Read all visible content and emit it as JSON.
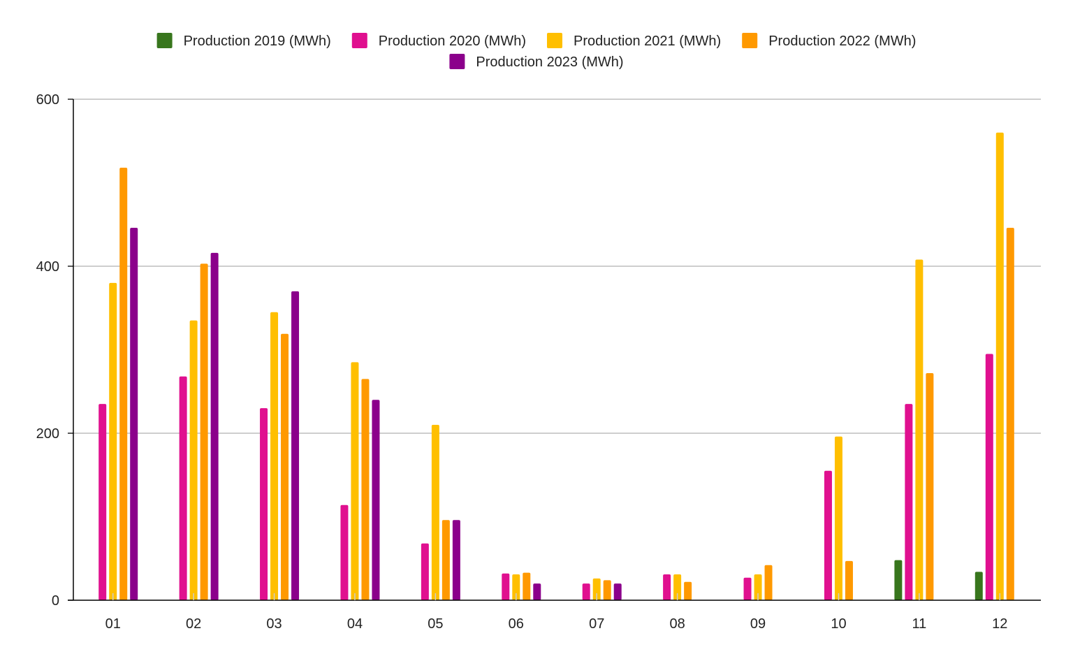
{
  "chart_data": {
    "type": "bar",
    "title": "",
    "xlabel": "",
    "ylabel": "",
    "ylim": [
      0,
      600
    ],
    "yticks": [
      0,
      200,
      400,
      600
    ],
    "grid": true,
    "legend_position": "top-center",
    "categories": [
      "01",
      "02",
      "03",
      "04",
      "05",
      "06",
      "07",
      "08",
      "09",
      "10",
      "11",
      "12"
    ],
    "series": [
      {
        "name": "Production 2019 (MWh)",
        "color": "#38761d",
        "values": [
          null,
          null,
          null,
          null,
          null,
          null,
          null,
          null,
          null,
          null,
          48,
          34
        ]
      },
      {
        "name": "Production 2020 (MWh)",
        "color": "#e0108f",
        "values": [
          235,
          268,
          230,
          114,
          68,
          32,
          20,
          31,
          27,
          155,
          235,
          295
        ]
      },
      {
        "name": "Production 2021 (MWh)",
        "color": "#ffbf00",
        "values": [
          380,
          335,
          345,
          285,
          210,
          31,
          26,
          31,
          31,
          196,
          408,
          560
        ]
      },
      {
        "name": "Production 2022 (MWh)",
        "color": "#ff9900",
        "values": [
          518,
          403,
          319,
          265,
          96,
          33,
          24,
          22,
          42,
          47,
          272,
          446
        ]
      },
      {
        "name": "Production 2023 (MWh)",
        "color": "#8b008b",
        "values": [
          446,
          416,
          370,
          240,
          96,
          20,
          20,
          null,
          null,
          null,
          null,
          null
        ]
      }
    ]
  }
}
